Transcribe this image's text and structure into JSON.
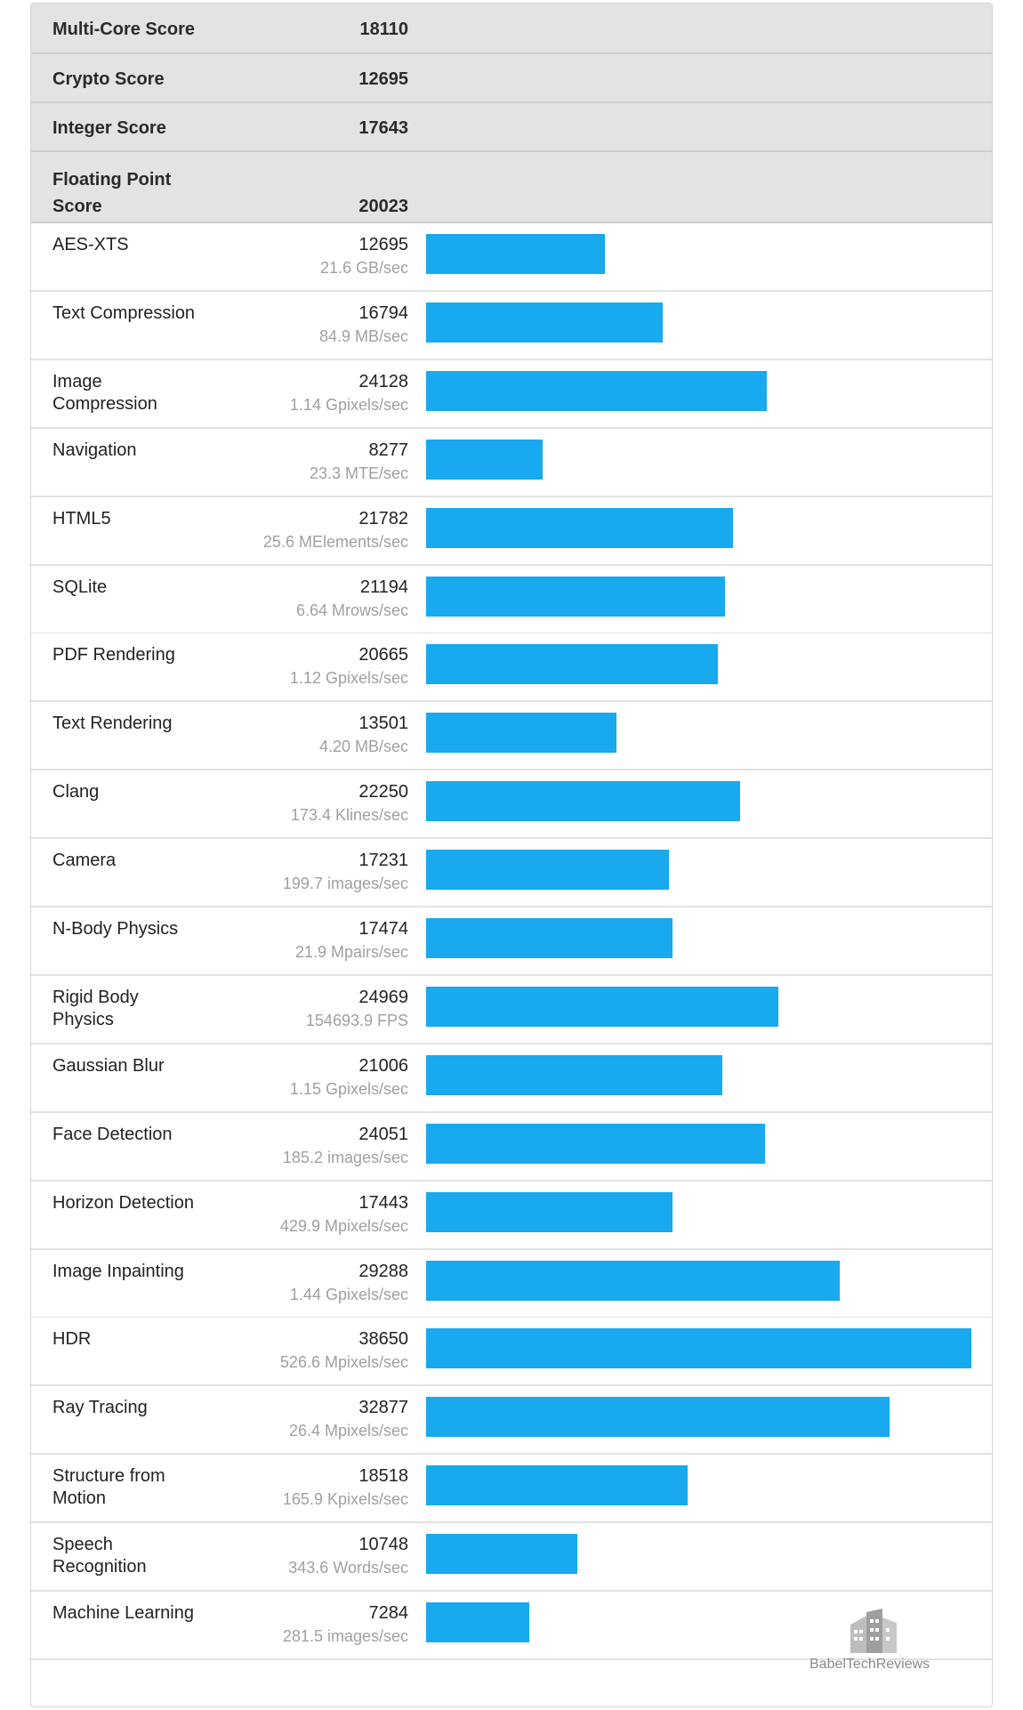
{
  "scores": [
    {
      "label": "Multi-Core Score",
      "value": "18110"
    },
    {
      "label": "Crypto Score",
      "value": "12695"
    },
    {
      "label": "Integer Score",
      "value": "17643"
    },
    {
      "label": "Floating Point\nScore",
      "value": "20023"
    }
  ],
  "benchmarks": [
    {
      "name": "AES-XTS",
      "score": 12695,
      "rate": "21.6 GB/sec"
    },
    {
      "name": "Text Compression",
      "score": 16794,
      "rate": "84.9 MB/sec"
    },
    {
      "name": "Image\nCompression",
      "score": 24128,
      "rate": "1.14 Gpixels/sec"
    },
    {
      "name": "Navigation",
      "score": 8277,
      "rate": "23.3 MTE/sec"
    },
    {
      "name": "HTML5",
      "score": 21782,
      "rate": "25.6 MElements/sec"
    },
    {
      "name": "SQLite",
      "score": 21194,
      "rate": "6.64 Mrows/sec"
    },
    {
      "name": "PDF Rendering",
      "score": 20665,
      "rate": "1.12 Gpixels/sec"
    },
    {
      "name": "Text Rendering",
      "score": 13501,
      "rate": "4.20 MB/sec"
    },
    {
      "name": "Clang",
      "score": 22250,
      "rate": "173.4 Klines/sec"
    },
    {
      "name": "Camera",
      "score": 17231,
      "rate": "199.7 images/sec"
    },
    {
      "name": "N-Body Physics",
      "score": 17474,
      "rate": "21.9 Mpairs/sec"
    },
    {
      "name": "Rigid Body\nPhysics",
      "score": 24969,
      "rate": "154693.9 FPS"
    },
    {
      "name": "Gaussian Blur",
      "score": 21006,
      "rate": "1.15 Gpixels/sec"
    },
    {
      "name": "Face Detection",
      "score": 24051,
      "rate": "185.2 images/sec"
    },
    {
      "name": "Horizon Detection",
      "score": 17443,
      "rate": "429.9 Mpixels/sec"
    },
    {
      "name": "Image Inpainting",
      "score": 29288,
      "rate": "1.44 Gpixels/sec"
    },
    {
      "name": "HDR",
      "score": 38650,
      "rate": "526.6 Mpixels/sec"
    },
    {
      "name": "Ray Tracing",
      "score": 32877,
      "rate": "26.4 Mpixels/sec"
    },
    {
      "name": "Structure from\nMotion",
      "score": 18518,
      "rate": "165.9 Kpixels/sec"
    },
    {
      "name": "Speech\nRecognition",
      "score": 10748,
      "rate": "343.6 Words/sec"
    },
    {
      "name": "Machine Learning",
      "score": 7284,
      "rate": "281.5 images/sec"
    }
  ],
  "bar_color": "#18a9ef",
  "bar_max_score": 38650,
  "watermark": {
    "text": "BabelTechReviews",
    "icon": "building-logo-icon"
  }
}
